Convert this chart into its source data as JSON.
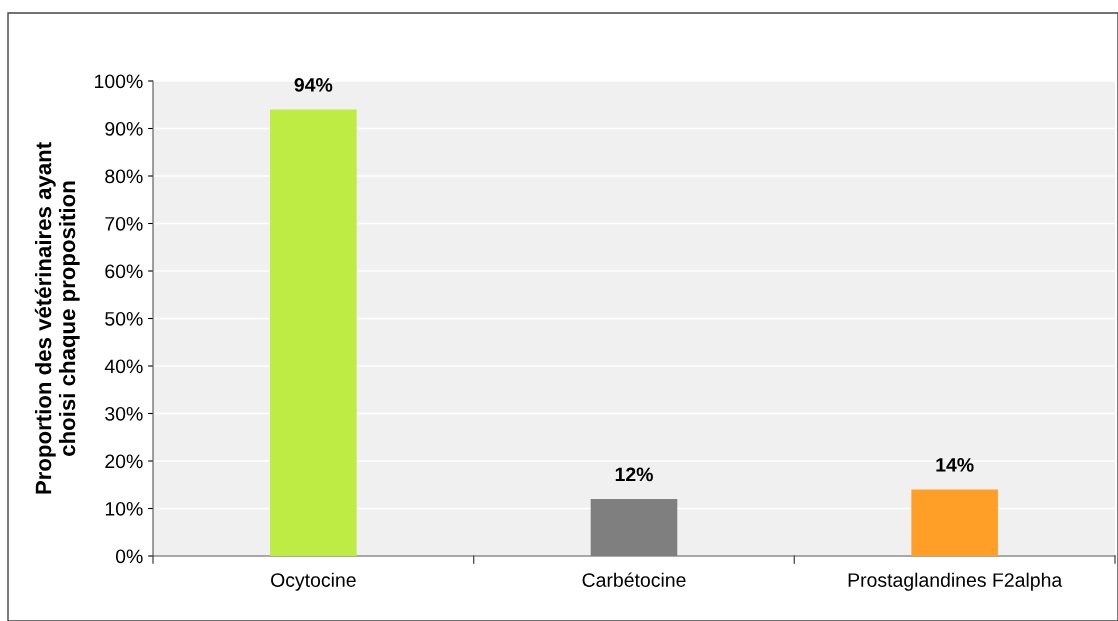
{
  "chart_data": {
    "type": "bar",
    "ylabel": "Proportion des vétérinaires ayant\nchoisi chaque proposition",
    "categories": [
      "Ocytocine",
      "Carbétocine",
      "Prostaglandines F2alpha"
    ],
    "values": [
      94,
      12,
      14
    ],
    "colors": [
      "#bfeb45",
      "#7f7f7f",
      "#ff9f28"
    ],
    "value_labels": [
      "94%",
      "12%",
      "14%"
    ],
    "ylim": [
      0,
      100
    ],
    "yticks": [
      {
        "value": 0,
        "label": "0%"
      },
      {
        "value": 10,
        "label": "10%"
      },
      {
        "value": 20,
        "label": "20%"
      },
      {
        "value": 30,
        "label": "30%"
      },
      {
        "value": 40,
        "label": "40%"
      },
      {
        "value": 50,
        "label": "50%"
      },
      {
        "value": 60,
        "label": "60%"
      },
      {
        "value": 70,
        "label": "70%"
      },
      {
        "value": 80,
        "label": "80%"
      },
      {
        "value": 90,
        "label": "90%"
      },
      {
        "value": 100,
        "label": "100%"
      }
    ],
    "grid": "y",
    "legend": false
  }
}
